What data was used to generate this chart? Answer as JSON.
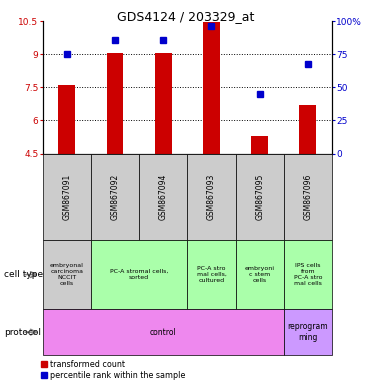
{
  "title": "GDS4124 / 203329_at",
  "samples": [
    "GSM867091",
    "GSM867092",
    "GSM867094",
    "GSM867093",
    "GSM867095",
    "GSM867096"
  ],
  "transformed_counts": [
    7.6,
    9.05,
    9.05,
    10.45,
    5.3,
    6.7
  ],
  "percentile_ranks": [
    75,
    86,
    86,
    96,
    45,
    68
  ],
  "ylim_left": [
    4.5,
    10.5
  ],
  "ylim_right": [
    0,
    100
  ],
  "yticks_left": [
    4.5,
    6.0,
    7.5,
    9.0,
    10.5
  ],
  "yticks_right": [
    0,
    25,
    50,
    75,
    100
  ],
  "ytick_labels_left": [
    "4.5",
    "6",
    "7.5",
    "9",
    "10.5"
  ],
  "ytick_labels_right": [
    "0",
    "25",
    "50",
    "75",
    "100%"
  ],
  "dotted_yticks": [
    6.0,
    7.5,
    9.0
  ],
  "bar_color": "#cc0000",
  "dot_color": "#0000cc",
  "bar_width": 0.35,
  "cell_type_groups": [
    {
      "label": "embryonal\ncarcinoma\nNCCIT\ncells",
      "start": 0,
      "end": 0,
      "color": "#cccccc"
    },
    {
      "label": "PC-A stromal cells,\nsorted",
      "start": 1,
      "end": 2,
      "color": "#aaffaa"
    },
    {
      "label": "PC-A stro\nmal cells,\ncultured",
      "start": 3,
      "end": 3,
      "color": "#aaffaa"
    },
    {
      "label": "embryoni\nc stem\ncells",
      "start": 4,
      "end": 4,
      "color": "#aaffaa"
    },
    {
      "label": "IPS cells\nfrom\nPC-A stro\nmal cells",
      "start": 5,
      "end": 5,
      "color": "#aaffaa"
    }
  ],
  "protocol_groups": [
    {
      "label": "control",
      "start": 0,
      "end": 4,
      "color": "#ee88ee"
    },
    {
      "label": "reprogram\nming",
      "start": 5,
      "end": 5,
      "color": "#cc99ff"
    }
  ],
  "background_color": "#ffffff",
  "sample_bg_color": "#cccccc"
}
